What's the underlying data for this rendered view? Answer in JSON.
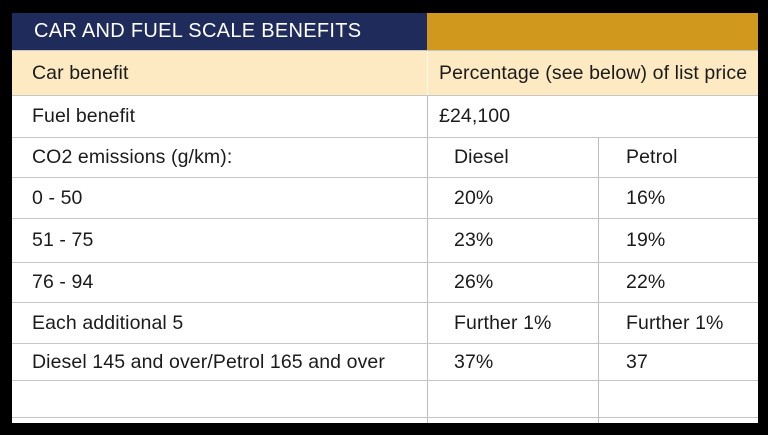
{
  "table": {
    "title": "CAR AND FUEL SCALE BENEFITS",
    "colors": {
      "header_navy": "#1f2b5b",
      "header_gold": "#d0991d",
      "highlight_cream": "#fdeac2",
      "grid_line": "#c6c6c6",
      "frame": "#000000"
    },
    "rows": [
      {
        "label": "Car benefit",
        "value": "Percentage (see below) of list price"
      },
      {
        "label": "Fuel benefit",
        "value": "£24,100"
      },
      {
        "label": "CO2 emissions (g/km):",
        "diesel": "Diesel",
        "petrol": "Petrol"
      },
      {
        "label": "0 - 50",
        "diesel": "20%",
        "petrol": "16%"
      },
      {
        "label": "51 - 75",
        "diesel": "23%",
        "petrol": "19%"
      },
      {
        "label": "76 - 94",
        "diesel": "26%",
        "petrol": "22%"
      },
      {
        "label": "Each additional 5",
        "diesel": "Further 1%",
        "petrol": "Further 1%"
      },
      {
        "label": "Diesel 145 and over/Petrol 165 and over",
        "diesel": "37%",
        "petrol": "37"
      },
      {
        "label": "",
        "diesel": "",
        "petrol": ""
      }
    ]
  }
}
